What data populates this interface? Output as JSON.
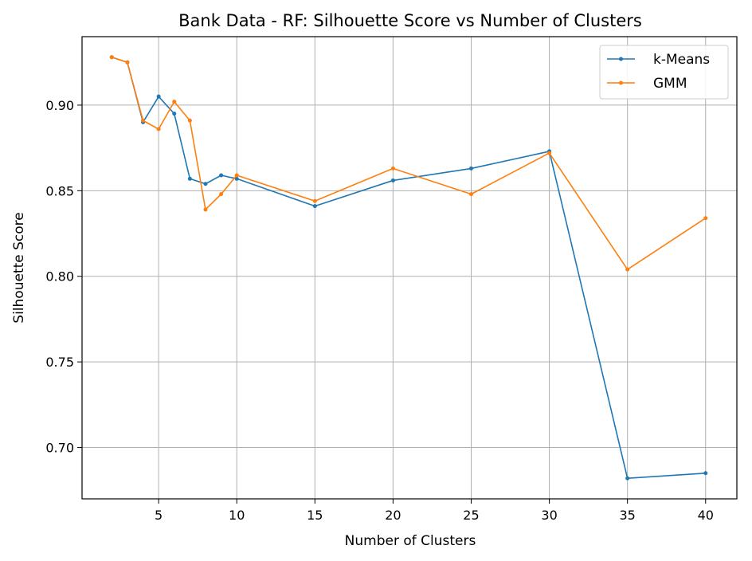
{
  "chart_data": {
    "type": "line",
    "title": "Bank Data - RF: Silhouette Score vs Number of Clusters",
    "xlabel": "Number of Clusters",
    "ylabel": "Silhouette Score",
    "xlim": [
      0.1,
      42.0
    ],
    "ylim": [
      0.67,
      0.94
    ],
    "xticks": [
      5,
      10,
      15,
      20,
      25,
      30,
      35,
      40
    ],
    "yticks": [
      0.7,
      0.75,
      0.8,
      0.85,
      0.9
    ],
    "ytick_labels": [
      "0.70",
      "0.75",
      "0.80",
      "0.85",
      "0.90"
    ],
    "grid": true,
    "legend_position": "top-right",
    "series": [
      {
        "name": "k-Means",
        "color": "#1f77b4",
        "x": [
          2,
          3,
          4,
          5,
          6,
          7,
          8,
          9,
          10,
          15,
          20,
          25,
          30,
          35,
          40
        ],
        "y": [
          0.928,
          0.925,
          0.89,
          0.905,
          0.895,
          0.857,
          0.854,
          0.859,
          0.857,
          0.841,
          0.856,
          0.863,
          0.873,
          0.682,
          0.685
        ]
      },
      {
        "name": "GMM",
        "color": "#ff7f0e",
        "x": [
          2,
          3,
          4,
          5,
          6,
          7,
          8,
          9,
          10,
          15,
          20,
          25,
          30,
          35,
          40
        ],
        "y": [
          0.928,
          0.925,
          0.891,
          0.886,
          0.902,
          0.891,
          0.839,
          0.848,
          0.859,
          0.844,
          0.863,
          0.848,
          0.872,
          0.804,
          0.834
        ]
      }
    ]
  }
}
